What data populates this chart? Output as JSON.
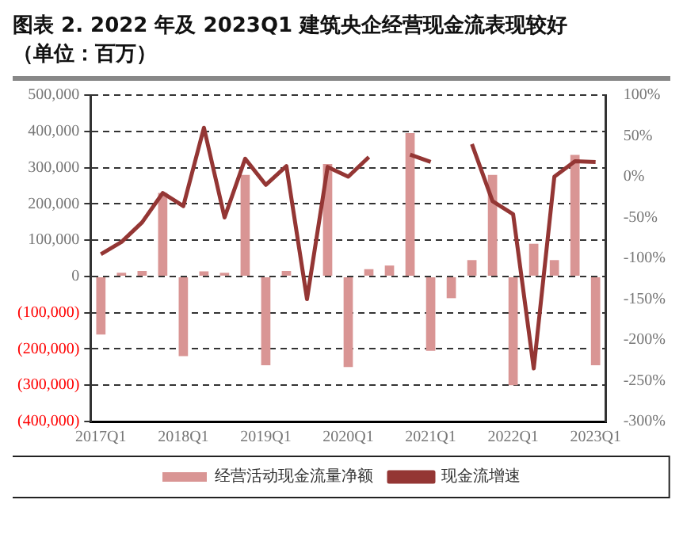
{
  "chart_data": {
    "type": "bar",
    "title": "图表 2. 2022 年及 2023Q1 建筑央企经营现金流表现较好",
    "subtitle": "（单位：百万）",
    "categories": [
      "2017Q1",
      null,
      null,
      null,
      "2018Q1",
      null,
      null,
      null,
      "2019Q1",
      null,
      null,
      null,
      "2020Q1",
      null,
      null,
      null,
      "2021Q1",
      null,
      null,
      null,
      "2022Q1",
      null,
      null,
      null,
      "2023Q1"
    ],
    "series": [
      {
        "name": "经营活动现金流量净额",
        "color": "#d99594",
        "values": [
          -160000,
          10000,
          15000,
          230000,
          -220000,
          14000,
          10000,
          280000,
          -245000,
          15000,
          null,
          310000,
          -250000,
          20000,
          30000,
          395000,
          -205000,
          -60000,
          45000,
          280000,
          -300000,
          90000,
          45000,
          335000,
          -245000
        ]
      },
      {
        "name": "现金流增速",
        "type": "line",
        "axis": "y2",
        "color": "#943634",
        "values": [
          -95,
          -80,
          -56,
          -20,
          -36,
          60,
          -50,
          22,
          -10,
          13,
          -150,
          12,
          0,
          24,
          null,
          27,
          18,
          null,
          40,
          -30,
          -46,
          -235,
          0,
          19,
          18
        ]
      }
    ],
    "ylim": [
      -400000,
      500000
    ],
    "yticks": [
      {
        "value": -400000,
        "label": "(400,000)"
      },
      {
        "value": -300000,
        "label": "(300,000)"
      },
      {
        "value": -200000,
        "label": "(200,000)"
      },
      {
        "value": -100000,
        "label": "(100,000)"
      },
      0,
      {
        "value": 100000,
        "label": "100,000"
      },
      {
        "value": 200000,
        "label": "200,000"
      },
      {
        "value": 300000,
        "label": "300,000"
      },
      {
        "value": 400000,
        "label": "400,000"
      },
      {
        "value": 500000,
        "label": "500,000"
      }
    ],
    "y2lim": [
      -300,
      100
    ],
    "y2ticks": [
      {
        "value": -300,
        "label": "-300%"
      },
      {
        "value": -250,
        "label": "-250%"
      },
      {
        "value": -200,
        "label": "-200%"
      },
      {
        "value": -150,
        "label": "-150%"
      },
      {
        "value": -100,
        "label": "-100%"
      },
      {
        "value": -50,
        "label": "-50%"
      },
      {
        "value": 0,
        "label": "0%"
      },
      {
        "value": 50,
        "label": "50%"
      },
      {
        "value": 100,
        "label": "100%"
      }
    ],
    "grid": "y",
    "legend": "bottom",
    "marker": "none",
    "line_style": "solid"
  }
}
